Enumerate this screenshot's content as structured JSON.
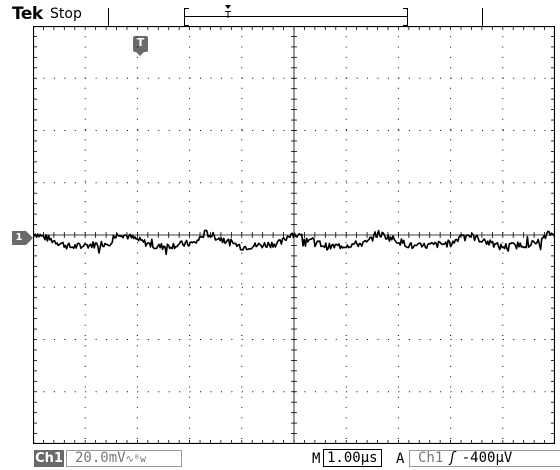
{
  "header": {
    "brand": "Tek",
    "acq_status": "Stop",
    "trigger_position_glyph": "T"
  },
  "markers": {
    "trigger": "T",
    "channel": "1"
  },
  "readout": {
    "channel_badge": "Ch1",
    "volts_per_div": "20.0mV",
    "coupling_icon": "∿ᴮw",
    "main_label": "M",
    "time_per_div": "1.00µs",
    "trigger_mode_label": "A",
    "trigger_source": "Ch1",
    "trigger_slope_glyph": "ʃ",
    "trigger_level": "-400µV"
  },
  "display": {
    "divisions_x": 10,
    "divisions_y": 8,
    "trace_color": "#000000",
    "grid_color": "#000000"
  }
}
